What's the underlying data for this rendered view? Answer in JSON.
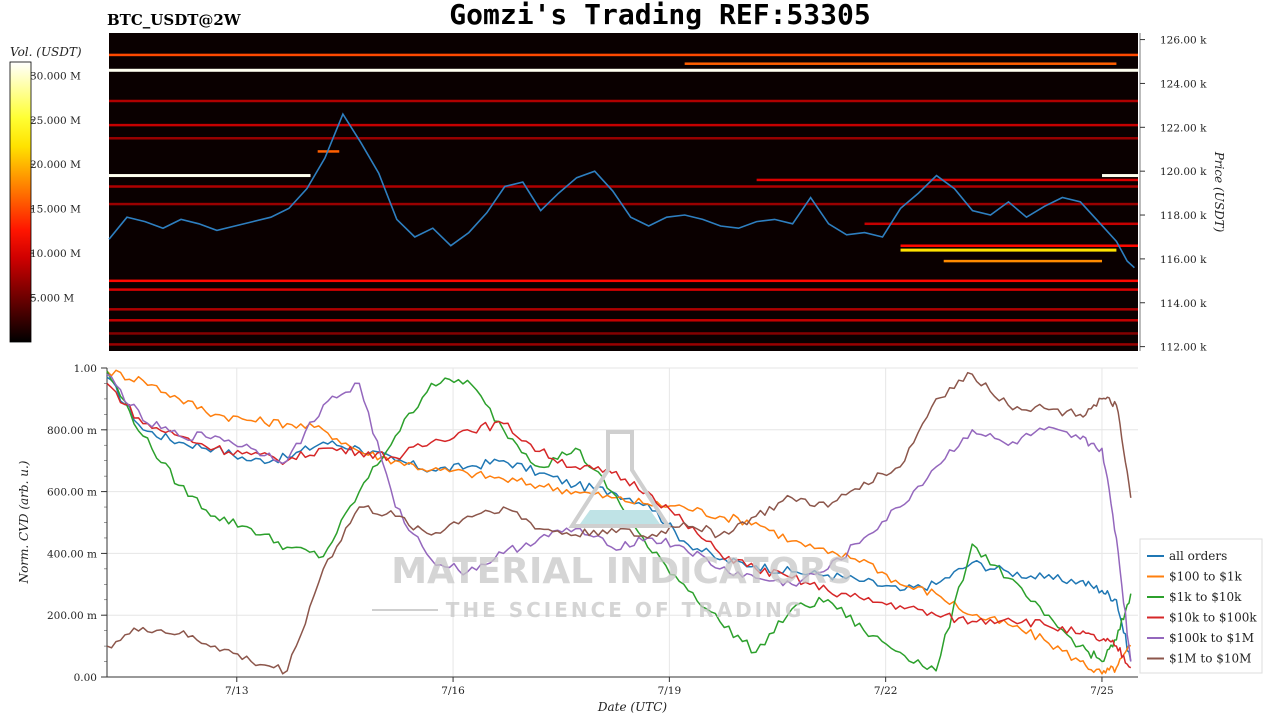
{
  "header": {
    "title": "Gomzi's Trading REF:53305",
    "symbol": "BTC_USDT@2W"
  },
  "watermark": {
    "line1": "MATERIAL INDICATORS",
    "line2": "THE SCIENCE OF TRADING"
  },
  "chart_data": [
    {
      "type": "heatmap",
      "ylabel": "Price (USDT)",
      "colorbar_label": "Vol. (USDT)",
      "colorbar_ticks": [
        "30.000 M",
        "25.000 M",
        "20.000 M",
        "15.000 M",
        "10.000 M",
        "5.000 M"
      ],
      "colorbar_values": [
        30,
        25,
        20,
        15,
        10,
        5
      ],
      "colorbar_range": [
        0,
        31.5
      ],
      "y_ticks": [
        "126.00 k",
        "124.00 k",
        "122.00 k",
        "120.00 k",
        "118.00 k",
        "116.00 k",
        "114.00 k",
        "112.00 k"
      ],
      "y_tick_values": [
        126,
        124,
        122,
        120,
        118,
        116,
        114,
        112
      ],
      "ylim": [
        111.8,
        126.3
      ],
      "xlim": [
        0,
        14.3
      ],
      "colors": {
        "price_line": "#2e7fc0"
      },
      "price_series": {
        "x": [
          0,
          0.25,
          0.5,
          0.75,
          1,
          1.25,
          1.5,
          1.75,
          2,
          2.25,
          2.5,
          2.75,
          3,
          3.25,
          3.5,
          3.75,
          4.0,
          4.25,
          4.5,
          4.75,
          5.0,
          5.25,
          5.5,
          5.75,
          6.0,
          6.25,
          6.5,
          6.75,
          7.0,
          7.25,
          7.5,
          7.75,
          8.0,
          8.25,
          8.5,
          8.75,
          9.0,
          9.25,
          9.5,
          9.75,
          10.0,
          10.25,
          10.5,
          10.75,
          11.0,
          11.25,
          11.5,
          11.75,
          12.0,
          12.25,
          12.5,
          12.75,
          13.0,
          13.25,
          13.5,
          13.75,
          14.0,
          14.15,
          14.25
        ],
        "y": [
          116.9,
          117.9,
          117.7,
          117.4,
          117.8,
          117.6,
          117.3,
          117.5,
          117.7,
          117.9,
          118.3,
          119.2,
          120.6,
          122.6,
          121.3,
          119.9,
          117.8,
          117.0,
          117.4,
          116.6,
          117.2,
          118.1,
          119.3,
          119.5,
          118.2,
          119.0,
          119.7,
          120.0,
          119.1,
          117.9,
          117.5,
          117.9,
          118.0,
          117.8,
          117.5,
          117.4,
          117.7,
          117.8,
          117.6,
          118.8,
          117.6,
          117.1,
          117.2,
          117.0,
          118.3,
          119.0,
          119.8,
          119.2,
          118.2,
          118.0,
          118.6,
          117.9,
          118.4,
          118.8,
          118.6,
          117.7,
          116.8,
          115.9,
          115.6
        ]
      },
      "levels": [
        {
          "p": 125.3,
          "x0": 0,
          "x1": 14.3,
          "v": 15
        },
        {
          "p": 124.9,
          "x0": 8.0,
          "x1": 14.0,
          "v": 16
        },
        {
          "p": 124.6,
          "x0": 0,
          "x1": 14.3,
          "v": 31
        },
        {
          "p": 123.2,
          "x0": 0,
          "x1": 14.3,
          "v": 8
        },
        {
          "p": 122.1,
          "x0": 0,
          "x1": 14.3,
          "v": 9
        },
        {
          "p": 121.5,
          "x0": 0,
          "x1": 14.3,
          "v": 7
        },
        {
          "p": 120.9,
          "x0": 2.9,
          "x1": 3.2,
          "v": 16
        },
        {
          "p": 119.8,
          "x0": 0,
          "x1": 2.8,
          "v": 31
        },
        {
          "p": 119.8,
          "x0": 13.8,
          "x1": 14.3,
          "v": 31
        },
        {
          "p": 119.6,
          "x0": 9.0,
          "x1": 14.3,
          "v": 10
        },
        {
          "p": 119.3,
          "x0": 0,
          "x1": 14.3,
          "v": 8
        },
        {
          "p": 118.5,
          "x0": 0,
          "x1": 14.3,
          "v": 7
        },
        {
          "p": 117.6,
          "x0": 10.5,
          "x1": 14.3,
          "v": 9
        },
        {
          "p": 116.6,
          "x0": 11.0,
          "x1": 14.3,
          "v": 12
        },
        {
          "p": 116.4,
          "x0": 11.0,
          "x1": 14.0,
          "v": 22
        },
        {
          "p": 115.9,
          "x0": 11.6,
          "x1": 13.8,
          "v": 18
        },
        {
          "p": 115.0,
          "x0": 0,
          "x1": 14.3,
          "v": 12
        },
        {
          "p": 114.6,
          "x0": 0,
          "x1": 14.3,
          "v": 10
        },
        {
          "p": 113.7,
          "x0": 0,
          "x1": 14.3,
          "v": 8
        },
        {
          "p": 113.2,
          "x0": 0,
          "x1": 14.3,
          "v": 9
        },
        {
          "p": 112.6,
          "x0": 0,
          "x1": 14.3,
          "v": 6
        },
        {
          "p": 112.1,
          "x0": 0,
          "x1": 14.3,
          "v": 7
        }
      ]
    },
    {
      "type": "line",
      "xlabel": "Date (UTC)",
      "ylabel": "Norm. CVD (arb. u.)",
      "x_ticks": [
        "7/13",
        "7/16",
        "7/19",
        "7/22",
        "7/25"
      ],
      "x_tick_values": [
        1.8,
        4.8,
        7.8,
        10.8,
        13.8
      ],
      "y_ticks": [
        "1.00",
        "800.00 m",
        "600.00 m",
        "400.00 m",
        "200.00 m",
        "0.00"
      ],
      "y_tick_values": [
        1.0,
        0.8,
        0.6,
        0.4,
        0.2,
        0.0
      ],
      "ylim": [
        0,
        1
      ],
      "xlim": [
        0,
        14.3
      ],
      "grid": true,
      "legend_position": "right",
      "series": [
        {
          "name": "all orders",
          "color": "#1f77b4",
          "x": [
            0,
            0.5,
            1,
            1.5,
            2,
            2.5,
            3,
            3.5,
            4,
            4.5,
            5,
            5.5,
            6,
            6.5,
            7,
            7.5,
            8,
            8.5,
            9,
            9.5,
            10,
            10.5,
            11,
            11.5,
            12,
            12.5,
            13,
            13.5,
            13.8,
            14.0,
            14.2
          ],
          "y": [
            0.97,
            0.8,
            0.76,
            0.74,
            0.7,
            0.71,
            0.76,
            0.74,
            0.7,
            0.67,
            0.68,
            0.7,
            0.66,
            0.62,
            0.6,
            0.56,
            0.44,
            0.38,
            0.36,
            0.34,
            0.33,
            0.31,
            0.28,
            0.3,
            0.37,
            0.34,
            0.32,
            0.31,
            0.28,
            0.25,
            0.05
          ]
        },
        {
          "name": "$100 to $1k",
          "color": "#ff7f0e",
          "x": [
            0,
            0.5,
            1,
            1.5,
            2,
            2.5,
            3,
            3.5,
            4,
            4.5,
            5,
            5.5,
            6,
            6.5,
            7,
            7.5,
            8,
            8.5,
            9,
            9.5,
            10,
            10.5,
            11,
            11.5,
            12,
            12.5,
            13,
            13.5,
            13.8,
            14.0,
            14.2
          ],
          "y": [
            0.99,
            0.96,
            0.9,
            0.85,
            0.83,
            0.82,
            0.8,
            0.73,
            0.7,
            0.67,
            0.66,
            0.64,
            0.62,
            0.6,
            0.58,
            0.56,
            0.55,
            0.52,
            0.5,
            0.44,
            0.4,
            0.38,
            0.3,
            0.27,
            0.2,
            0.17,
            0.12,
            0.05,
            0.01,
            0.03,
            0.1
          ]
        },
        {
          "name": "$1k to $10k",
          "color": "#2ca02c",
          "x": [
            0,
            0.5,
            1,
            1.5,
            2,
            2.5,
            3,
            3.5,
            4,
            4.5,
            5,
            5.5,
            6,
            6.5,
            7,
            7.5,
            8,
            8.5,
            9,
            9.5,
            10,
            10.5,
            11,
            11.5,
            12,
            12.5,
            13,
            13.5,
            13.8,
            14.0,
            14.2
          ],
          "y": [
            0.99,
            0.78,
            0.62,
            0.52,
            0.48,
            0.42,
            0.39,
            0.6,
            0.78,
            0.95,
            0.96,
            0.8,
            0.68,
            0.74,
            0.6,
            0.42,
            0.3,
            0.18,
            0.08,
            0.22,
            0.25,
            0.15,
            0.08,
            0.02,
            0.43,
            0.32,
            0.2,
            0.1,
            0.05,
            0.12,
            0.27
          ]
        },
        {
          "name": "$10k to $100k",
          "color": "#d62728",
          "x": [
            0,
            0.5,
            1,
            1.5,
            2,
            2.5,
            3,
            3.5,
            4,
            4.5,
            5,
            5.5,
            6,
            6.5,
            7,
            7.5,
            8,
            8.5,
            9,
            9.5,
            10,
            10.5,
            11,
            11.5,
            12,
            12.5,
            13,
            13.5,
            13.8,
            14.0,
            14.2
          ],
          "y": [
            0.95,
            0.82,
            0.78,
            0.74,
            0.72,
            0.7,
            0.74,
            0.73,
            0.71,
            0.76,
            0.8,
            0.82,
            0.73,
            0.68,
            0.66,
            0.6,
            0.5,
            0.4,
            0.35,
            0.32,
            0.28,
            0.25,
            0.23,
            0.2,
            0.18,
            0.19,
            0.17,
            0.14,
            0.12,
            0.1,
            0.03
          ]
        },
        {
          "name": "$100k to $1M",
          "color": "#9467bd",
          "x": [
            0,
            0.5,
            1,
            1.5,
            2,
            2.5,
            3,
            3.5,
            4,
            4.5,
            5,
            5.5,
            6,
            6.5,
            7,
            7.5,
            8,
            8.5,
            9,
            9.5,
            10,
            10.5,
            11,
            11.5,
            12,
            12.5,
            13,
            13.5,
            13.8,
            14.0,
            14.2
          ],
          "y": [
            0.98,
            0.83,
            0.78,
            0.78,
            0.74,
            0.7,
            0.88,
            0.95,
            0.55,
            0.38,
            0.34,
            0.4,
            0.45,
            0.48,
            0.42,
            0.45,
            0.42,
            0.35,
            0.32,
            0.3,
            0.35,
            0.45,
            0.55,
            0.68,
            0.8,
            0.75,
            0.8,
            0.77,
            0.74,
            0.45,
            0.05
          ]
        },
        {
          "name": "$1M to $10M",
          "color": "#8c564b",
          "x": [
            0,
            0.5,
            1,
            1.5,
            2,
            2.5,
            3,
            3.5,
            4,
            4.5,
            5,
            5.5,
            6,
            6.5,
            7,
            7.5,
            8,
            8.5,
            9,
            9.5,
            10,
            10.5,
            11,
            11.5,
            12,
            12.5,
            13,
            13.5,
            13.8,
            14.0,
            14.2
          ],
          "y": [
            0.1,
            0.16,
            0.14,
            0.1,
            0.05,
            0.02,
            0.35,
            0.55,
            0.52,
            0.46,
            0.52,
            0.55,
            0.48,
            0.46,
            0.48,
            0.45,
            0.5,
            0.46,
            0.52,
            0.58,
            0.55,
            0.63,
            0.68,
            0.9,
            0.98,
            0.88,
            0.87,
            0.85,
            0.9,
            0.88,
            0.58
          ]
        }
      ]
    }
  ]
}
